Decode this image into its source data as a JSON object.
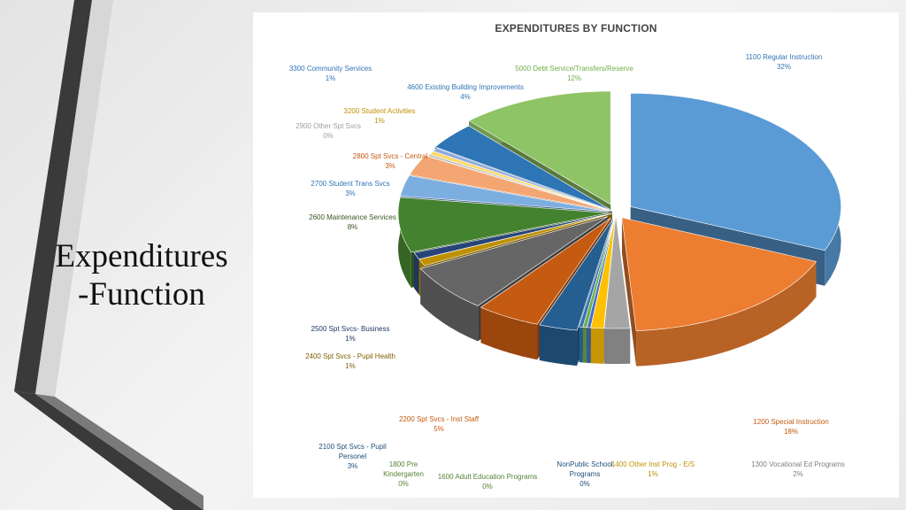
{
  "slide": {
    "title_line1": "Expenditures",
    "title_line2": "-Function"
  },
  "chart_data": {
    "type": "pie",
    "title": "EXPENDITURES BY FUNCTION",
    "start_angle_deg": 0,
    "order": "clockwise from 12 o'clock",
    "exploded": true,
    "three_d": true,
    "slices": [
      {
        "label": "1100 Regular Instruction",
        "pct_label": "32%",
        "value": 32,
        "color": "#5B9BD5"
      },
      {
        "label": "1200 Special Instruction",
        "pct_label": "18%",
        "value": 18,
        "color": "#ED7D31"
      },
      {
        "label": "1300 Vocational Ed Programs",
        "pct_label": "2%",
        "value": 2,
        "color": "#A5A5A5"
      },
      {
        "label": "1400 Other Inst Prog - E/S",
        "pct_label": "1%",
        "value": 1,
        "color": "#FFC000"
      },
      {
        "label": "NonPublic School Programs",
        "pct_label": "0%",
        "value": 0.3,
        "color": "#4472C4"
      },
      {
        "label": "1600 Adult Education Programs",
        "pct_label": "0%",
        "value": 0.3,
        "color": "#70AD47"
      },
      {
        "label": "1800 Pre Kindergarten",
        "pct_label": "0%",
        "value": 0.3,
        "color": "#2E75B6"
      },
      {
        "label": "2100 Spt Svcs - Pupil Personel",
        "pct_label": "3%",
        "value": 3,
        "color": "#255E91"
      },
      {
        "label": "2200 Spt Svcs - Inst Staff",
        "pct_label": "5%",
        "value": 5,
        "color": "#C55A11"
      },
      {
        "label": "",
        "pct_label": "",
        "value": 7,
        "color": "#666666"
      },
      {
        "label": "2400 Spt Svcs - Pupil Health",
        "pct_label": "1%",
        "value": 1,
        "color": "#BF9000"
      },
      {
        "label": "2500 Spt Svcs- Business",
        "pct_label": "1%",
        "value": 1,
        "color": "#264478"
      },
      {
        "label": "2600 Maintenance Services",
        "pct_label": "8%",
        "value": 8,
        "color": "#43822E"
      },
      {
        "label": "2700 Student Trans Svcs",
        "pct_label": "3%",
        "value": 3,
        "color": "#7DAEE0"
      },
      {
        "label": "2800 Spt Svcs - Central",
        "pct_label": "3%",
        "value": 3,
        "color": "#F4A672"
      },
      {
        "label": "2900 Other Spt Svcs",
        "pct_label": "0%",
        "value": 0.3,
        "color": "#BFBFBF"
      },
      {
        "label": "3200 Student Activities",
        "pct_label": "1%",
        "value": 0.5,
        "color": "#FFD966"
      },
      {
        "label": "3300 Community Services",
        "pct_label": "1%",
        "value": 0.5,
        "color": "#8FAADC"
      },
      {
        "label": "4600 Existing Building Improvements",
        "pct_label": "4%",
        "value": 4,
        "color": "#2E75B6"
      },
      {
        "label": "5000 Debt Service/Transfers/Reserve",
        "pct_label": "12%",
        "value": 12,
        "color": "#8FC466"
      }
    ]
  }
}
